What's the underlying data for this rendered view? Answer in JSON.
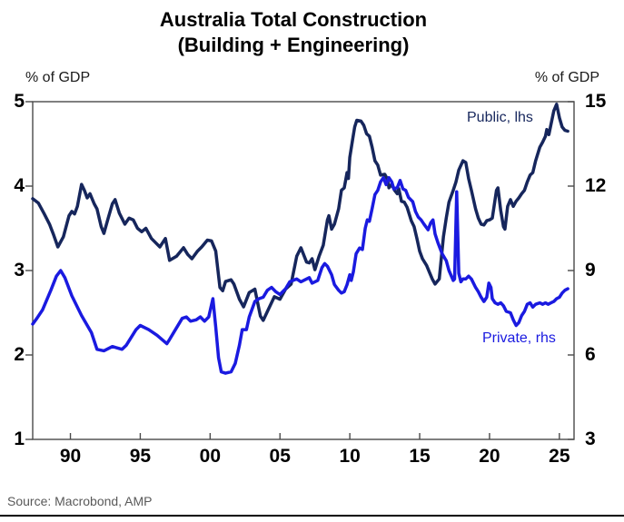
{
  "chart_data": {
    "type": "line",
    "title": "Australia Total Construction",
    "subtitle": "(Building + Engineering)",
    "source": "Source: Macrobond, AMP",
    "grid": false,
    "frame_color": "#4a4a4a",
    "legend_position": "inline-labels",
    "left_axis": {
      "label": "% of GDP",
      "min": 1,
      "max": 5,
      "ticks": [
        "5",
        "4",
        "3",
        "2",
        "1"
      ],
      "tick_values": [
        5,
        4,
        3,
        2,
        1
      ]
    },
    "right_axis": {
      "label": "% of GDP",
      "min": 3,
      "max": 15,
      "ticks": [
        "15",
        "12",
        "9",
        "6",
        "3"
      ],
      "tick_values": [
        15,
        12,
        9,
        6,
        3
      ]
    },
    "x_axis": {
      "min": 1987.3,
      "max": 2026.05,
      "tick_values": [
        1990,
        1995,
        2000,
        2005,
        2010,
        2015,
        2020,
        2025
      ],
      "ticks": [
        "90",
        "95",
        "00",
        "05",
        "10",
        "15",
        "20",
        "25"
      ]
    },
    "series": [
      {
        "name": "Public, lhs",
        "axis": "left",
        "color": "#16265C",
        "points": [
          [
            1987.3,
            3.85
          ],
          [
            1987.7,
            3.8
          ],
          [
            1988.1,
            3.68
          ],
          [
            1988.5,
            3.55
          ],
          [
            1988.8,
            3.42
          ],
          [
            1989.1,
            3.28
          ],
          [
            1989.5,
            3.4
          ],
          [
            1989.9,
            3.65
          ],
          [
            1990.1,
            3.7
          ],
          [
            1990.3,
            3.67
          ],
          [
            1990.5,
            3.76
          ],
          [
            1990.8,
            4.02
          ],
          [
            1991.0,
            3.95
          ],
          [
            1991.2,
            3.86
          ],
          [
            1991.4,
            3.91
          ],
          [
            1991.7,
            3.79
          ],
          [
            1991.9,
            3.73
          ],
          [
            1992.2,
            3.52
          ],
          [
            1992.4,
            3.44
          ],
          [
            1992.7,
            3.62
          ],
          [
            1993.0,
            3.79
          ],
          [
            1993.2,
            3.84
          ],
          [
            1993.5,
            3.68
          ],
          [
            1993.9,
            3.55
          ],
          [
            1994.2,
            3.62
          ],
          [
            1994.5,
            3.6
          ],
          [
            1994.8,
            3.5
          ],
          [
            1995.1,
            3.46
          ],
          [
            1995.4,
            3.5
          ],
          [
            1995.8,
            3.38
          ],
          [
            1996.1,
            3.33
          ],
          [
            1996.4,
            3.28
          ],
          [
            1996.8,
            3.38
          ],
          [
            1997.1,
            3.12
          ],
          [
            1997.6,
            3.17
          ],
          [
            1998.1,
            3.27
          ],
          [
            1998.4,
            3.19
          ],
          [
            1998.7,
            3.14
          ],
          [
            1999.1,
            3.23
          ],
          [
            1999.4,
            3.28
          ],
          [
            1999.8,
            3.36
          ],
          [
            2000.1,
            3.35
          ],
          [
            2000.4,
            3.23
          ],
          [
            2000.7,
            2.8
          ],
          [
            2000.9,
            2.76
          ],
          [
            2001.1,
            2.87
          ],
          [
            2001.5,
            2.89
          ],
          [
            2001.7,
            2.84
          ],
          [
            2002.1,
            2.66
          ],
          [
            2002.4,
            2.57
          ],
          [
            2002.8,
            2.74
          ],
          [
            2003.2,
            2.78
          ],
          [
            2003.6,
            2.46
          ],
          [
            2003.8,
            2.41
          ],
          [
            2004.2,
            2.55
          ],
          [
            2004.6,
            2.69
          ],
          [
            2005.0,
            2.66
          ],
          [
            2005.4,
            2.78
          ],
          [
            2005.8,
            2.84
          ],
          [
            2006.2,
            3.17
          ],
          [
            2006.5,
            3.27
          ],
          [
            2006.9,
            3.1
          ],
          [
            2007.1,
            3.09
          ],
          [
            2007.3,
            3.14
          ],
          [
            2007.5,
            3.01
          ],
          [
            2007.8,
            3.17
          ],
          [
            2008.1,
            3.3
          ],
          [
            2008.4,
            3.6
          ],
          [
            2008.5,
            3.65
          ],
          [
            2008.7,
            3.49
          ],
          [
            2008.9,
            3.55
          ],
          [
            2009.2,
            3.73
          ],
          [
            2009.4,
            3.95
          ],
          [
            2009.6,
            3.98
          ],
          [
            2009.8,
            4.16
          ],
          [
            2009.9,
            4.09
          ],
          [
            2010.0,
            4.34
          ],
          [
            2010.2,
            4.55
          ],
          [
            2010.35,
            4.7
          ],
          [
            2010.5,
            4.78
          ],
          [
            2010.8,
            4.77
          ],
          [
            2011.0,
            4.72
          ],
          [
            2011.2,
            4.62
          ],
          [
            2011.4,
            4.59
          ],
          [
            2011.6,
            4.46
          ],
          [
            2011.8,
            4.3
          ],
          [
            2012.0,
            4.25
          ],
          [
            2012.2,
            4.13
          ],
          [
            2012.5,
            4.14
          ],
          [
            2012.7,
            4.08
          ],
          [
            2012.8,
            3.98
          ],
          [
            2013.0,
            4.02
          ],
          [
            2013.2,
            3.95
          ],
          [
            2013.4,
            3.91
          ],
          [
            2013.5,
            3.97
          ],
          [
            2013.7,
            3.82
          ],
          [
            2013.9,
            3.81
          ],
          [
            2014.1,
            3.75
          ],
          [
            2014.4,
            3.59
          ],
          [
            2014.6,
            3.52
          ],
          [
            2014.8,
            3.38
          ],
          [
            2015.0,
            3.23
          ],
          [
            2015.2,
            3.14
          ],
          [
            2015.5,
            3.06
          ],
          [
            2015.7,
            2.98
          ],
          [
            2015.9,
            2.9
          ],
          [
            2016.1,
            2.84
          ],
          [
            2016.4,
            2.9
          ],
          [
            2016.7,
            3.4
          ],
          [
            2016.9,
            3.62
          ],
          [
            2017.1,
            3.81
          ],
          [
            2017.4,
            3.95
          ],
          [
            2017.6,
            4.05
          ],
          [
            2017.8,
            4.19
          ],
          [
            2018.1,
            4.3
          ],
          [
            2018.3,
            4.28
          ],
          [
            2018.5,
            4.09
          ],
          [
            2018.7,
            3.95
          ],
          [
            2019.0,
            3.73
          ],
          [
            2019.2,
            3.62
          ],
          [
            2019.4,
            3.55
          ],
          [
            2019.6,
            3.54
          ],
          [
            2019.8,
            3.59
          ],
          [
            2020.0,
            3.6
          ],
          [
            2020.2,
            3.62
          ],
          [
            2020.5,
            3.95
          ],
          [
            2020.6,
            3.98
          ],
          [
            2020.8,
            3.71
          ],
          [
            2021.0,
            3.52
          ],
          [
            2021.1,
            3.49
          ],
          [
            2021.3,
            3.76
          ],
          [
            2021.5,
            3.84
          ],
          [
            2021.7,
            3.76
          ],
          [
            2021.9,
            3.82
          ],
          [
            2022.1,
            3.86
          ],
          [
            2022.3,
            3.91
          ],
          [
            2022.5,
            3.95
          ],
          [
            2022.7,
            4.05
          ],
          [
            2022.9,
            4.13
          ],
          [
            2023.1,
            4.16
          ],
          [
            2023.3,
            4.3
          ],
          [
            2023.6,
            4.46
          ],
          [
            2023.8,
            4.52
          ],
          [
            2024.0,
            4.59
          ],
          [
            2024.1,
            4.67
          ],
          [
            2024.25,
            4.61
          ],
          [
            2024.4,
            4.73
          ],
          [
            2024.6,
            4.89
          ],
          [
            2024.8,
            4.97
          ],
          [
            2025.0,
            4.81
          ],
          [
            2025.2,
            4.7
          ],
          [
            2025.4,
            4.66
          ],
          [
            2025.6,
            4.65
          ]
        ]
      },
      {
        "name": "Private, rhs",
        "axis": "right",
        "color": "#1A1AE0",
        "points": [
          [
            1987.3,
            7.1
          ],
          [
            1987.6,
            7.3
          ],
          [
            1988.0,
            7.6
          ],
          [
            1988.6,
            8.3
          ],
          [
            1989.0,
            8.8
          ],
          [
            1989.3,
            9.0
          ],
          [
            1989.6,
            8.75
          ],
          [
            1990.1,
            8.1
          ],
          [
            1990.8,
            7.4
          ],
          [
            1991.5,
            6.8
          ],
          [
            1991.9,
            6.2
          ],
          [
            1992.4,
            6.15
          ],
          [
            1993.0,
            6.3
          ],
          [
            1993.7,
            6.2
          ],
          [
            1994.0,
            6.35
          ],
          [
            1994.7,
            6.9
          ],
          [
            1995.0,
            7.05
          ],
          [
            1995.6,
            6.9
          ],
          [
            1996.2,
            6.7
          ],
          [
            1996.9,
            6.4
          ],
          [
            1997.1,
            6.55
          ],
          [
            1997.4,
            6.8
          ],
          [
            1998.0,
            7.3
          ],
          [
            1998.3,
            7.35
          ],
          [
            1998.6,
            7.2
          ],
          [
            1999.0,
            7.25
          ],
          [
            1999.3,
            7.35
          ],
          [
            1999.6,
            7.2
          ],
          [
            1999.9,
            7.35
          ],
          [
            2000.2,
            8.0
          ],
          [
            2000.4,
            7.0
          ],
          [
            2000.6,
            5.9
          ],
          [
            2000.8,
            5.4
          ],
          [
            2001.1,
            5.35
          ],
          [
            2001.5,
            5.4
          ],
          [
            2001.8,
            5.7
          ],
          [
            2002.1,
            6.35
          ],
          [
            2002.3,
            6.9
          ],
          [
            2002.6,
            6.9
          ],
          [
            2002.8,
            7.35
          ],
          [
            2003.2,
            7.9
          ],
          [
            2003.5,
            8.0
          ],
          [
            2003.8,
            8.05
          ],
          [
            2004.1,
            8.3
          ],
          [
            2004.4,
            8.4
          ],
          [
            2004.7,
            8.25
          ],
          [
            2005.0,
            8.15
          ],
          [
            2005.4,
            8.35
          ],
          [
            2005.7,
            8.6
          ],
          [
            2006.2,
            8.7
          ],
          [
            2006.5,
            8.6
          ],
          [
            2006.9,
            8.7
          ],
          [
            2007.1,
            8.75
          ],
          [
            2007.3,
            8.55
          ],
          [
            2007.7,
            8.65
          ],
          [
            2008.0,
            9.1
          ],
          [
            2008.2,
            9.25
          ],
          [
            2008.4,
            9.15
          ],
          [
            2008.7,
            8.85
          ],
          [
            2008.9,
            8.5
          ],
          [
            2009.2,
            8.3
          ],
          [
            2009.4,
            8.2
          ],
          [
            2009.6,
            8.25
          ],
          [
            2009.8,
            8.5
          ],
          [
            2010.0,
            8.85
          ],
          [
            2010.1,
            8.65
          ],
          [
            2010.25,
            8.95
          ],
          [
            2010.45,
            9.6
          ],
          [
            2010.7,
            9.8
          ],
          [
            2010.9,
            9.75
          ],
          [
            2011.1,
            10.5
          ],
          [
            2011.25,
            10.8
          ],
          [
            2011.4,
            10.75
          ],
          [
            2011.6,
            11.2
          ],
          [
            2011.8,
            11.7
          ],
          [
            2012.0,
            11.85
          ],
          [
            2012.2,
            12.15
          ],
          [
            2012.4,
            12.3
          ],
          [
            2012.6,
            12.05
          ],
          [
            2012.8,
            12.3
          ],
          [
            2013.0,
            12.15
          ],
          [
            2013.15,
            11.9
          ],
          [
            2013.4,
            11.95
          ],
          [
            2013.6,
            12.2
          ],
          [
            2013.8,
            11.9
          ],
          [
            2014.0,
            11.85
          ],
          [
            2014.2,
            11.6
          ],
          [
            2014.5,
            11.45
          ],
          [
            2014.7,
            11.1
          ],
          [
            2014.9,
            10.9
          ],
          [
            2015.1,
            10.8
          ],
          [
            2015.3,
            10.65
          ],
          [
            2015.6,
            10.45
          ],
          [
            2015.8,
            10.7
          ],
          [
            2015.95,
            10.8
          ],
          [
            2016.1,
            10.3
          ],
          [
            2016.3,
            10.0
          ],
          [
            2016.6,
            9.6
          ],
          [
            2016.9,
            9.35
          ],
          [
            2017.1,
            9.0
          ],
          [
            2017.4,
            8.65
          ],
          [
            2017.5,
            8.7
          ],
          [
            2017.65,
            11.8
          ],
          [
            2017.8,
            8.9
          ],
          [
            2017.95,
            8.6
          ],
          [
            2018.1,
            8.7
          ],
          [
            2018.3,
            8.7
          ],
          [
            2018.5,
            8.8
          ],
          [
            2018.7,
            8.7
          ],
          [
            2019.0,
            8.4
          ],
          [
            2019.2,
            8.25
          ],
          [
            2019.4,
            8.05
          ],
          [
            2019.6,
            7.9
          ],
          [
            2019.8,
            8.05
          ],
          [
            2019.95,
            8.55
          ],
          [
            2020.1,
            8.4
          ],
          [
            2020.2,
            8.0
          ],
          [
            2020.4,
            7.85
          ],
          [
            2020.6,
            7.8
          ],
          [
            2020.8,
            7.85
          ],
          [
            2021.0,
            7.75
          ],
          [
            2021.2,
            7.55
          ],
          [
            2021.5,
            7.5
          ],
          [
            2021.7,
            7.25
          ],
          [
            2021.9,
            7.05
          ],
          [
            2022.1,
            7.15
          ],
          [
            2022.3,
            7.4
          ],
          [
            2022.5,
            7.55
          ],
          [
            2022.7,
            7.8
          ],
          [
            2022.9,
            7.85
          ],
          [
            2023.1,
            7.7
          ],
          [
            2023.3,
            7.8
          ],
          [
            2023.6,
            7.85
          ],
          [
            2023.8,
            7.8
          ],
          [
            2024.0,
            7.85
          ],
          [
            2024.2,
            7.8
          ],
          [
            2024.4,
            7.85
          ],
          [
            2024.6,
            7.9
          ],
          [
            2024.8,
            8.0
          ],
          [
            2025.0,
            8.05
          ],
          [
            2025.2,
            8.2
          ],
          [
            2025.4,
            8.3
          ],
          [
            2025.6,
            8.35
          ]
        ]
      }
    ]
  }
}
